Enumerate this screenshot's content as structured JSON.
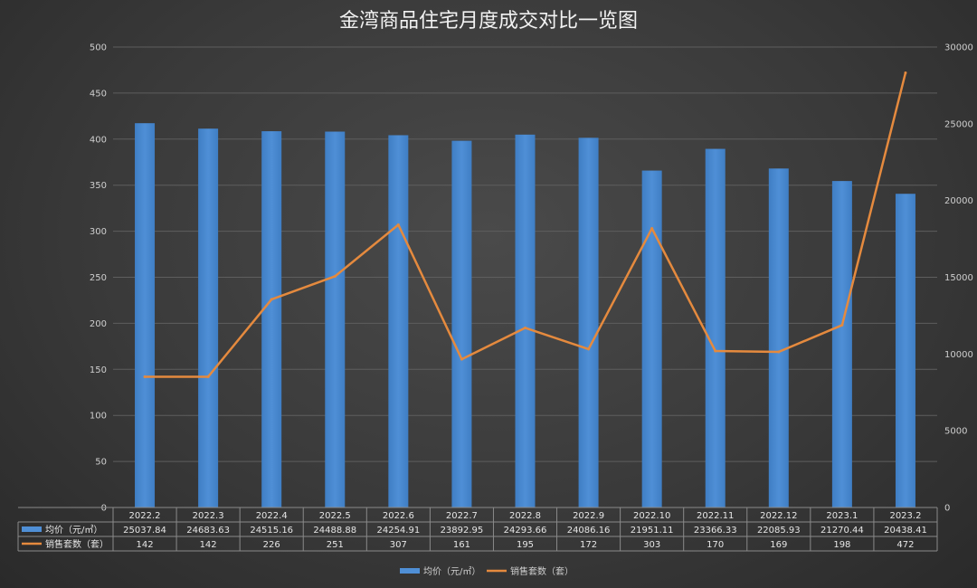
{
  "chart_data": {
    "type": "bar",
    "title": "金湾商品住宅月度成交对比一览图",
    "categories": [
      "2022.2",
      "2022.3",
      "2022.4",
      "2022.5",
      "2022.6",
      "2022.7",
      "2022.8",
      "2022.9",
      "2022.10",
      "2022.11",
      "2022.12",
      "2023.1",
      "2023.2"
    ],
    "series": [
      {
        "name": "均价（元/㎡）",
        "type": "bar",
        "axis": "right",
        "color": "#4f8fd6",
        "values": [
          25037.84,
          24683.63,
          24515.16,
          24488.88,
          24254.91,
          23892.95,
          24293.66,
          24086.16,
          21951.11,
          23366.33,
          22085.93,
          21270.44,
          20438.41
        ],
        "labels": [
          "25037.84",
          "24683.63",
          "24515.16",
          "24488.88",
          "24254.91",
          "23892.95",
          "24293.66",
          "24086.16",
          "21951.11",
          "23366.33",
          "22085.93",
          "21270.44",
          "20438.41"
        ]
      },
      {
        "name": "销售套数（套）",
        "type": "line",
        "axis": "left",
        "color": "#e58a3e",
        "values": [
          142,
          142,
          226,
          251,
          307,
          161,
          195,
          172,
          303,
          170,
          169,
          198,
          472
        ],
        "labels": [
          "142",
          "142",
          "226",
          "251",
          "307",
          "161",
          "195",
          "172",
          "303",
          "170",
          "169",
          "198",
          "472"
        ]
      }
    ],
    "left_axis": {
      "min": 0,
      "max": 500,
      "step": 50,
      "ticks": [
        "0",
        "50",
        "100",
        "150",
        "200",
        "250",
        "300",
        "350",
        "400",
        "450",
        "500"
      ]
    },
    "right_axis": {
      "min": 0,
      "max": 30000,
      "step": 5000,
      "ticks": [
        "0",
        "5000",
        "10000",
        "15000",
        "20000",
        "25000",
        "30000"
      ]
    },
    "grid": true,
    "legend": {
      "position": "bottom",
      "items": [
        "均价（元/㎡）",
        "销售套数（套）"
      ]
    },
    "data_table": true
  }
}
